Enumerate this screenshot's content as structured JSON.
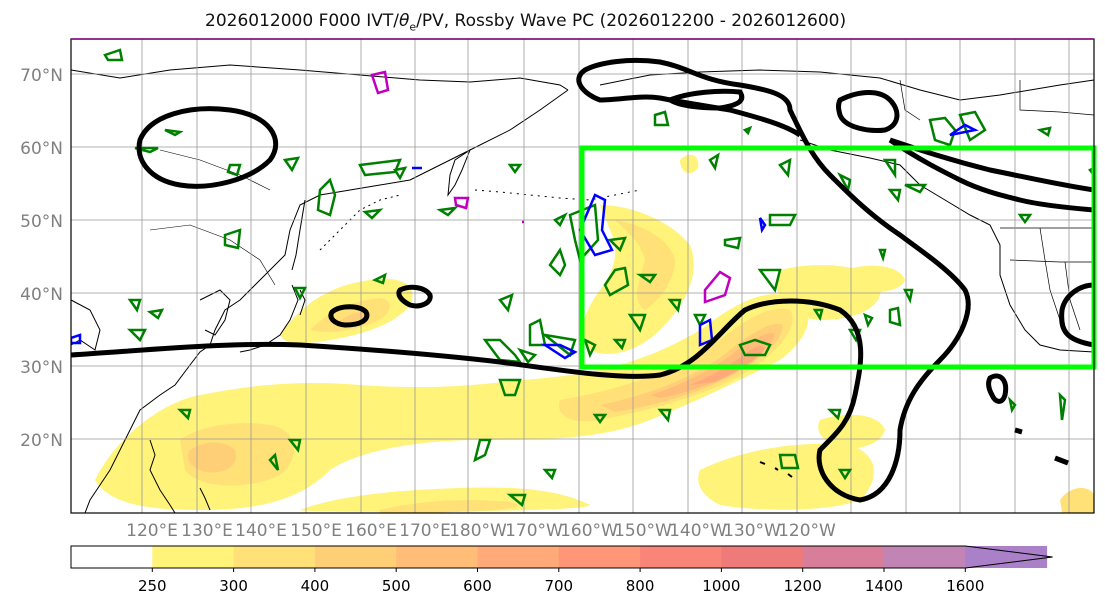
{
  "title": {
    "prefix": "2026012000 F000 IVT/",
    "theta": "θ",
    "theta_sub": "e",
    "suffix": "/PV, Rossby Wave PC (2026012200 - 2026012600)"
  },
  "map": {
    "lat_labels": [
      "70°N",
      "60°N",
      "50°N",
      "40°N",
      "30°N",
      "20°N"
    ],
    "lon_labels": [
      "120°E",
      "130°E",
      "140°E",
      "150°E",
      "160°E",
      "170°E",
      "180°W",
      "170°W",
      "160°W",
      "150°W",
      "140°W",
      "130°W",
      "120°W"
    ],
    "colors": {
      "coast": "#000000",
      "pv_contour": "#008000",
      "theta_contour_blue": "#0000ff",
      "theta_contour_magenta": "#c000c0",
      "rossby_contour": "#000000",
      "box": "#00ff00",
      "grid": "#999999"
    }
  },
  "colorbar": {
    "ticks": [
      "250",
      "300",
      "400",
      "500",
      "600",
      "700",
      "800",
      "1000",
      "1200",
      "1400",
      "1600"
    ],
    "colors": [
      "#ffffff",
      "#fff37a",
      "#ffe178",
      "#ffcf78",
      "#ffbd78",
      "#ffaa78",
      "#ff9678",
      "#f98478",
      "#ef7a7a",
      "#d97e9a",
      "#c184b4",
      "#aa80c8"
    ]
  }
}
